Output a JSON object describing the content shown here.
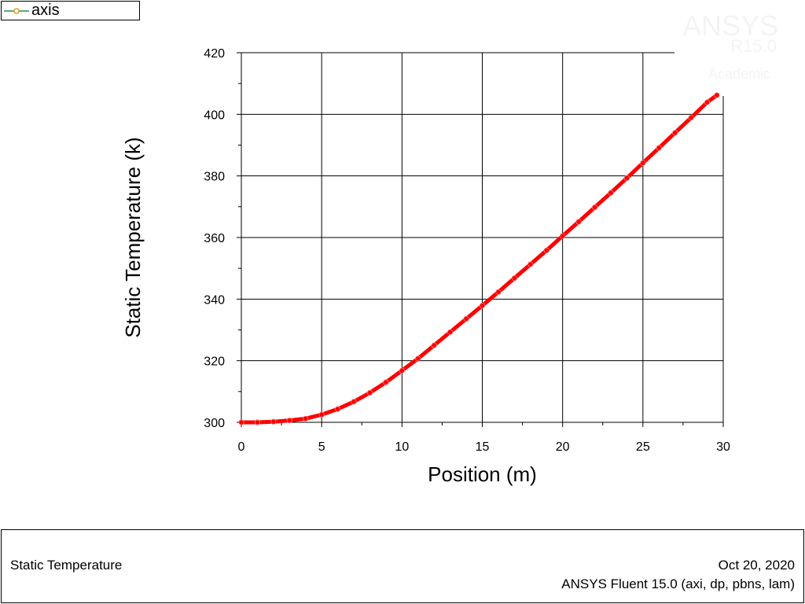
{
  "legend": {
    "label": "axis",
    "marker_color": "#d4a017",
    "line_color": "#2e8b57"
  },
  "watermark": {
    "brand": "ANSYS",
    "version": "R15.0",
    "edition": "Academic"
  },
  "footer": {
    "title": "Static Temperature",
    "date": "Oct 20, 2020",
    "solver": "ANSYS Fluent 15.0 (axi, dp, pbns, lam)"
  },
  "chart_data": {
    "type": "scatter",
    "xlabel": "Position (m)",
    "ylabel": "Static Temperature (k)",
    "xlim": [
      0,
      30
    ],
    "ylim": [
      300,
      420
    ],
    "xticks": [
      0,
      5,
      10,
      15,
      20,
      25,
      30
    ],
    "yticks": [
      300,
      320,
      340,
      360,
      380,
      400,
      420
    ],
    "grid": true,
    "legend_position": "top-left",
    "series": [
      {
        "name": "axis",
        "color": "#ff0000",
        "x": [
          0,
          1,
          2,
          3,
          4,
          5,
          6,
          7,
          8,
          9,
          10,
          11,
          12,
          13,
          14,
          15,
          16,
          17,
          18,
          19,
          20,
          21,
          22,
          23,
          24,
          25,
          26,
          27,
          28,
          29,
          29.6
        ],
        "y": [
          300,
          300,
          300.2,
          300.6,
          301.2,
          302.5,
          304.3,
          306.7,
          309.6,
          313,
          316.8,
          320.7,
          325,
          329.3,
          333.6,
          337.9,
          342.3,
          346.8,
          351.3,
          355.8,
          360.5,
          365.1,
          369.8,
          374.5,
          379.3,
          384.2,
          389.1,
          394,
          398.9,
          403.9,
          406.2
        ]
      }
    ]
  }
}
